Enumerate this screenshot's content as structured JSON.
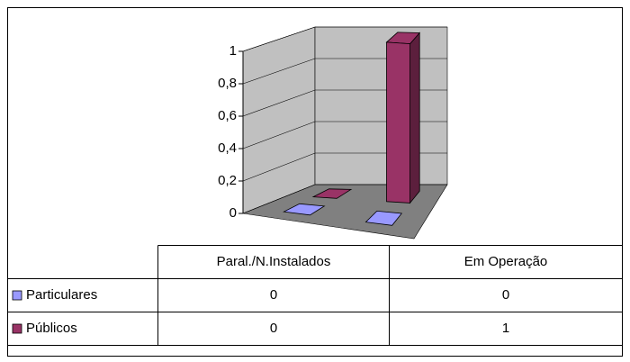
{
  "chart_data": {
    "type": "bar3d",
    "categories": [
      "Paral./N.Instalados",
      "Em Operação"
    ],
    "series": [
      {
        "name": "Particulares",
        "color": "#9999ff",
        "values": [
          0,
          0
        ]
      },
      {
        "name": "Públicos",
        "color": "#993366",
        "values": [
          0,
          1
        ]
      }
    ],
    "ylim": [
      0,
      1
    ],
    "yticks": [
      0,
      {
        "value": 0.2,
        "label": "0,2"
      },
      {
        "value": 0.4,
        "label": "0,4"
      },
      {
        "value": 0.6,
        "label": "0,6"
      },
      {
        "value": 0.8,
        "label": "0,8"
      },
      1
    ],
    "grid": true
  }
}
